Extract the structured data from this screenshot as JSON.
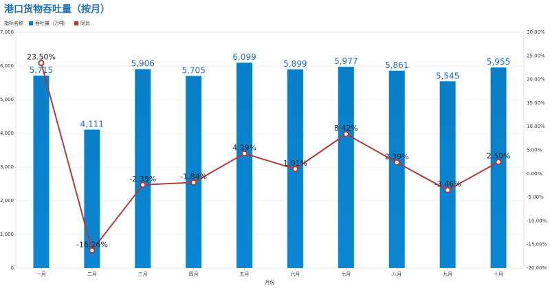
{
  "title": "港口货物吞吐量（按月）",
  "legend": {
    "indicator_label": "指标名称",
    "items": [
      {
        "name": "吞吐量（万吨）",
        "color": "#0a7fc7"
      },
      {
        "name": "同比",
        "color": "#b03a3a"
      }
    ]
  },
  "chart_data": {
    "type": "bar",
    "title": "港口货物吞吐量（按月）",
    "xlabel": "月份",
    "categories": [
      "一月",
      "二月",
      "三月",
      "四月",
      "五月",
      "六月",
      "七月",
      "八月",
      "九月",
      "十月"
    ],
    "series": [
      {
        "name": "吞吐量（万吨）",
        "type": "bar",
        "axis": "left",
        "color": "#0a7fc7",
        "values": [
          5715,
          4111,
          5906,
          5705,
          6099,
          5899,
          5977,
          5861,
          5545,
          5955
        ],
        "labels": [
          "5,715",
          "4,111",
          "5,906",
          "5,705",
          "6,099",
          "5,899",
          "5,977",
          "5,861",
          "5,545",
          "5,955"
        ]
      },
      {
        "name": "同比",
        "type": "line",
        "axis": "right",
        "color": "#b03a3a",
        "values": [
          23.5,
          -16.26,
          -2.35,
          -1.84,
          4.29,
          1.01,
          8.42,
          2.39,
          -3.46,
          2.5
        ],
        "labels": [
          "23.50%",
          "-16.26%",
          "-2.35%",
          "-1.84%",
          "4.29%",
          "1.01%",
          "8.42%",
          "2.39%",
          "-3.46%",
          "2.50%"
        ]
      }
    ],
    "y_left": {
      "range": [
        0,
        7000
      ],
      "ticks": [
        "0",
        "1,000",
        "2,000",
        "3,000",
        "4,000",
        "5,000",
        "6,000",
        "7,000"
      ]
    },
    "y_right": {
      "range": [
        -20,
        30
      ],
      "ticks": [
        "-20.00%",
        "-15.00%",
        "-10.00%",
        "-5.00%",
        "0.00%",
        "5.00%",
        "10.00%",
        "15.00%",
        "20.00%",
        "25.00%",
        "30.00%"
      ]
    },
    "grid": true,
    "legend_position": "top-left"
  }
}
